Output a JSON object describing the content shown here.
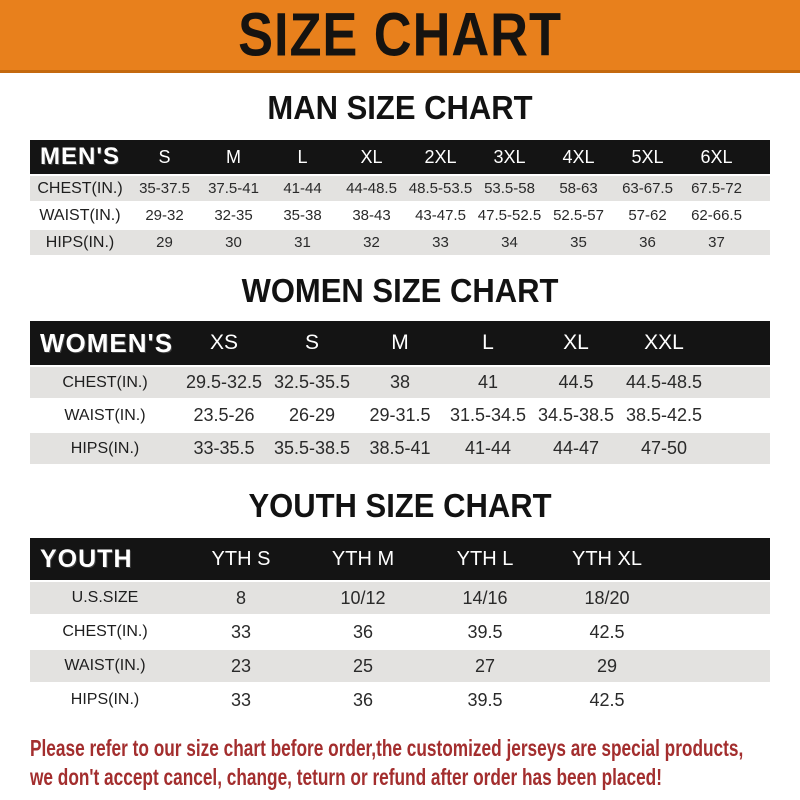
{
  "banner": {
    "title": "SIZE CHART"
  },
  "colors": {
    "banner_bg": "#E8801C",
    "banner_border": "#C4690F",
    "banner_text": "#161310",
    "header_bg": "#141414",
    "header_text": "#FFFFFF",
    "row_alt_bg": "#E3E2E0",
    "cell_text": "#2A2A2A",
    "footer_text": "#A32E2E"
  },
  "sections": [
    {
      "title": "MAN SIZE CHART",
      "header_label": "MEN'S",
      "columns": [
        "S",
        "M",
        "L",
        "XL",
        "2XL",
        "3XL",
        "4XL",
        "5XL",
        "6XL"
      ],
      "rows": [
        {
          "label": "CHEST(IN.)",
          "values": [
            "35-37.5",
            "37.5-41",
            "41-44",
            "44-48.5",
            "48.5-53.5",
            "53.5-58",
            "58-63",
            "63-67.5",
            "67.5-72"
          ]
        },
        {
          "label": "WAIST(IN.)",
          "values": [
            "29-32",
            "32-35",
            "35-38",
            "38-43",
            "43-47.5",
            "47.5-52.5",
            "52.5-57",
            "57-62",
            "62-66.5"
          ]
        },
        {
          "label": "HIPS(IN.)",
          "values": [
            "29",
            "30",
            "31",
            "32",
            "33",
            "34",
            "35",
            "36",
            "37"
          ]
        }
      ]
    },
    {
      "title": "WOMEN SIZE CHART",
      "header_label": "WOMEN'S",
      "columns": [
        "XS",
        "S",
        "M",
        "L",
        "XL",
        "XXL"
      ],
      "rows": [
        {
          "label": "CHEST(IN.)",
          "values": [
            "29.5-32.5",
            "32.5-35.5",
            "38",
            "41",
            "44.5",
            "44.5-48.5"
          ]
        },
        {
          "label": "WAIST(IN.)",
          "values": [
            "23.5-26",
            "26-29",
            "29-31.5",
            "31.5-34.5",
            "34.5-38.5",
            "38.5-42.5"
          ]
        },
        {
          "label": "HIPS(IN.)",
          "values": [
            "33-35.5",
            "35.5-38.5",
            "38.5-41",
            "41-44",
            "44-47",
            "47-50"
          ]
        }
      ]
    },
    {
      "title": "YOUTH SIZE CHART",
      "header_label": "YOUTH",
      "columns": [
        "YTH S",
        "YTH M",
        "YTH L",
        "YTH XL"
      ],
      "rows": [
        {
          "label": "U.S.SIZE",
          "values": [
            "8",
            "10/12",
            "14/16",
            "18/20"
          ]
        },
        {
          "label": "CHEST(IN.)",
          "values": [
            "33",
            "36",
            "39.5",
            "42.5"
          ]
        },
        {
          "label": "WAIST(IN.)",
          "values": [
            "23",
            "25",
            "27",
            "29"
          ]
        },
        {
          "label": "HIPS(IN.)",
          "values": [
            "33",
            "36",
            "39.5",
            "42.5"
          ]
        }
      ]
    }
  ],
  "footer": {
    "lines": [
      "Please refer to our size chart before order,the customized jerseys are special products,",
      "we don't accept cancel, change, teturn or refund after order has been placed!"
    ]
  }
}
